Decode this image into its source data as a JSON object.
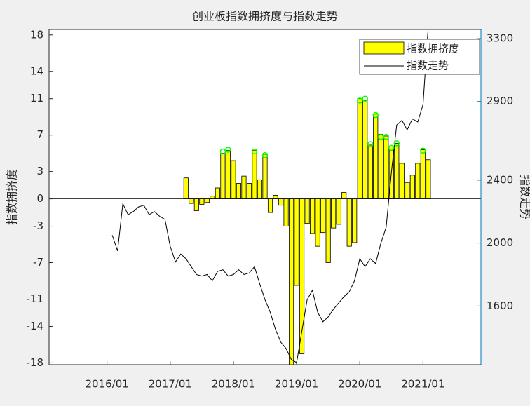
{
  "chart_data": {
    "type": "bar-line",
    "title": "创业板指数拥挤度与指数走势",
    "ylabel": "指数拥挤度",
    "y2label": "指数走势",
    "xlim": [
      "2015/02",
      "2021/12"
    ],
    "xticks": [
      "2016/01",
      "2017/01",
      "2018/01",
      "2019/01",
      "2020/01",
      "2021/01"
    ],
    "ylim": [
      -18.2,
      18.6
    ],
    "yticks": [
      -18,
      -14,
      -11,
      -7,
      -3,
      0,
      3,
      7,
      11,
      14,
      18
    ],
    "y2lim": [
      1227,
      3358
    ],
    "y2ticks": [
      1600,
      2000,
      2400,
      2900,
      3300
    ],
    "y2color": "#0072bd",
    "legend": "top-right",
    "series": [
      {
        "name": "指数拥挤度",
        "color": "#ffff00",
        "x": [
          "2017/04",
          "2017/05",
          "2017/06",
          "2017/07",
          "2017/08",
          "2017/09",
          "2017/10",
          "2017/11",
          "2017/12",
          "2018/01",
          "2018/02",
          "2018/03",
          "2018/04",
          "2018/05",
          "2018/06",
          "2018/07",
          "2018/08",
          "2018/09",
          "2018/10",
          "2018/11",
          "2018/12",
          "2019/01",
          "2019/02",
          "2019/03",
          "2019/04",
          "2019/05",
          "2019/06",
          "2019/07",
          "2019/08",
          "2019/09",
          "2019/10",
          "2019/11",
          "2019/12",
          "2020/01",
          "2020/02",
          "2020/03",
          "2020/04",
          "2020/05",
          "2020/06",
          "2020/07",
          "2020/08",
          "2020/09",
          "2020/10",
          "2020/11",
          "2020/12",
          "2021/01",
          "2021/02"
        ],
        "values": [
          2.3,
          -0.5,
          -1.3,
          -0.6,
          -0.4,
          0.3,
          1.2,
          5.0,
          5.3,
          4.2,
          1.7,
          2.5,
          1.7,
          5.3,
          2.1,
          4.9,
          -1.5,
          0.4,
          -0.7,
          -3.0,
          -19.0,
          -9.5,
          -17.0,
          -2.7,
          -3.8,
          -5.2,
          -3.7,
          -7.0,
          -3.2,
          -2.8,
          0.7,
          -5.2,
          -4.8,
          11.0,
          10.8,
          5.9,
          9.3,
          7.1,
          6.9,
          5.7,
          6.1,
          3.9,
          1.8,
          2.6,
          3.9,
          5.4,
          4.3
        ]
      },
      {
        "name": "指数走势",
        "color": "#000000",
        "axis": "y2",
        "x": [
          "2016/02",
          "2016/03",
          "2016/04",
          "2016/05",
          "2016/06",
          "2016/07",
          "2016/08",
          "2016/09",
          "2016/10",
          "2016/11",
          "2016/12",
          "2017/01",
          "2017/02",
          "2017/03",
          "2017/04",
          "2017/05",
          "2017/06",
          "2017/07",
          "2017/08",
          "2017/09",
          "2017/10",
          "2017/11",
          "2017/12",
          "2018/01",
          "2018/02",
          "2018/03",
          "2018/04",
          "2018/05",
          "2018/06",
          "2018/07",
          "2018/08",
          "2018/09",
          "2018/10",
          "2018/11",
          "2018/12",
          "2019/01",
          "2019/02",
          "2019/03",
          "2019/04",
          "2019/05",
          "2019/06",
          "2019/07",
          "2019/08",
          "2019/09",
          "2019/10",
          "2019/11",
          "2019/12",
          "2020/01",
          "2020/02",
          "2020/03",
          "2020/04",
          "2020/05",
          "2020/06",
          "2020/07",
          "2020/08",
          "2020/09",
          "2020/10",
          "2020/11",
          "2020/12",
          "2021/01",
          "2021/02"
        ],
        "values": [
          2050,
          1950,
          2250,
          2180,
          2200,
          2230,
          2240,
          2180,
          2200,
          2170,
          2150,
          1980,
          1880,
          1930,
          1900,
          1850,
          1800,
          1790,
          1800,
          1760,
          1820,
          1830,
          1790,
          1800,
          1830,
          1800,
          1810,
          1850,
          1740,
          1640,
          1560,
          1450,
          1370,
          1330,
          1260,
          1240,
          1440,
          1640,
          1700,
          1560,
          1500,
          1530,
          1580,
          1620,
          1660,
          1690,
          1760,
          1900,
          1850,
          1900,
          1870,
          2000,
          2100,
          2450,
          2750,
          2780,
          2720,
          2790,
          2770,
          2880,
          3380
        ]
      }
    ],
    "markers": {
      "color": "#00ff00",
      "x": [
        "2017/11",
        "2017/12",
        "2018/05",
        "2018/07",
        "2020/01",
        "2020/02",
        "2020/03",
        "2020/04",
        "2020/05",
        "2020/06",
        "2020/07",
        "2020/08",
        "2021/01"
      ],
      "values": [
        5.2,
        5.4,
        5.2,
        4.8,
        10.8,
        11.0,
        6.0,
        9.2,
        6.8,
        6.8,
        5.6,
        6.1,
        5.3
      ]
    }
  }
}
